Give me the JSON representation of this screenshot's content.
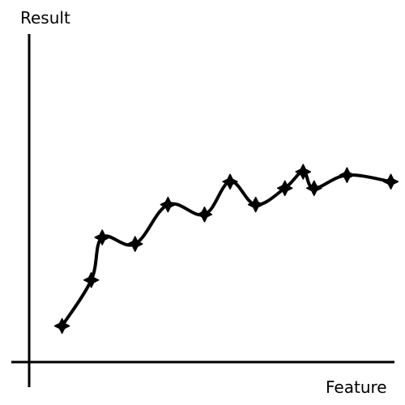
{
  "chart_data": {
    "type": "line",
    "title": "",
    "xlabel": "Feature",
    "ylabel": "Result",
    "grid": false,
    "legend": "none",
    "series": [
      {
        "points": [
          [
            0.09,
            0.11
          ],
          [
            0.17,
            0.25
          ],
          [
            0.2,
            0.38
          ],
          [
            0.29,
            0.36
          ],
          [
            0.38,
            0.48
          ],
          [
            0.48,
            0.45
          ],
          [
            0.55,
            0.55
          ],
          [
            0.62,
            0.48
          ],
          [
            0.7,
            0.53
          ],
          [
            0.75,
            0.58
          ],
          [
            0.78,
            0.53
          ],
          [
            0.87,
            0.57
          ],
          [
            0.99,
            0.55
          ]
        ]
      }
    ],
    "xlim": [
      0,
      1
    ],
    "ylim": [
      0,
      1
    ],
    "colors": {
      "line": "#000000",
      "marker": "#000000",
      "axis": "#000000"
    }
  }
}
